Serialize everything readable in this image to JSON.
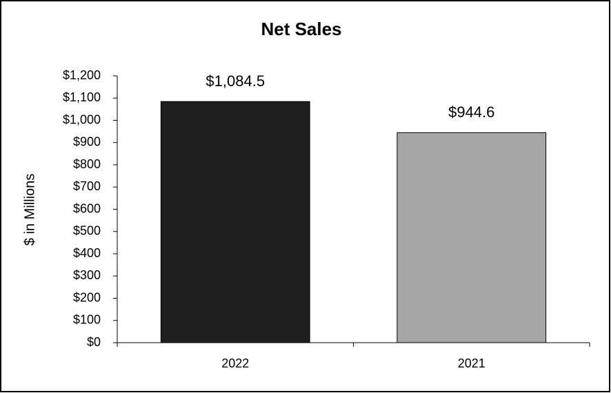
{
  "chart_data": {
    "type": "bar",
    "title": "Net Sales",
    "y_label": "$ in Millions",
    "categories": [
      "2022",
      "2021"
    ],
    "values": [
      1084.5,
      944.6
    ],
    "value_labels": [
      "$1,084.5",
      "$944.6"
    ],
    "colors": [
      "#1f1f1f",
      "#a6a6a6"
    ],
    "ylim": [
      0,
      1200
    ],
    "yticks": [
      {
        "value": 0,
        "label": "$0"
      },
      {
        "value": 100,
        "label": "$100"
      },
      {
        "value": 200,
        "label": "$200"
      },
      {
        "value": 300,
        "label": "$300"
      },
      {
        "value": 400,
        "label": "$400"
      },
      {
        "value": 500,
        "label": "$500"
      },
      {
        "value": 600,
        "label": "$600"
      },
      {
        "value": 700,
        "label": "$700"
      },
      {
        "value": 800,
        "label": "$800"
      },
      {
        "value": 900,
        "label": "$900"
      },
      {
        "value": 1000,
        "label": "$1,000"
      },
      {
        "value": 1100,
        "label": "$1,100"
      },
      {
        "value": 1200,
        "label": "$1,200"
      }
    ],
    "grid": false
  }
}
